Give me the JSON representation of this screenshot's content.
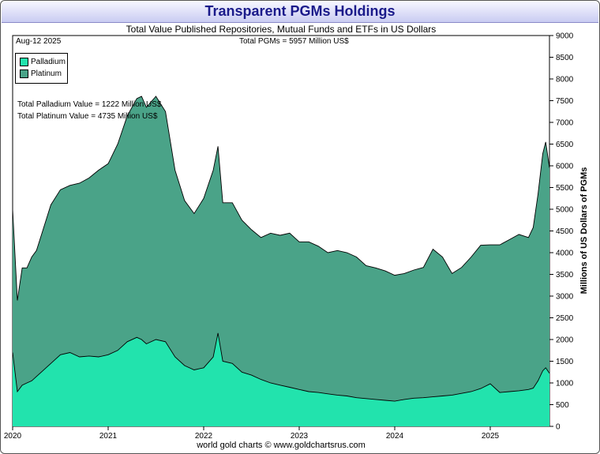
{
  "header": {
    "title": "Transparent PGMs Holdings",
    "subtitle": "Total Value Published Repositories, Mutual Funds and ETFs in US Dollars"
  },
  "annotations": {
    "date": "Aug-12  2025",
    "total": "Total PGMs = 5957 Million US$",
    "palladium_value": "Total Palladium Value = 1222 Million US$",
    "platinum_value": "Total Platinum Value = 4735 Million US$"
  },
  "footer": "world gold charts © www.goldchartsrus.com",
  "chart_data": {
    "type": "area",
    "stacked": true,
    "ylabel": "Millions of US Dollars of PGMs",
    "ylim": [
      0,
      9000
    ],
    "yticks": [
      "0",
      "500",
      "1000",
      "1500",
      "2000",
      "2500",
      "3000",
      "3500",
      "4000",
      "4500",
      "5000",
      "5500",
      "6000",
      "6500",
      "7000",
      "7500",
      "8000",
      "8500",
      "9000"
    ],
    "xlim": [
      2020.0,
      2025.62
    ],
    "xticks": [
      "2020",
      "2021",
      "2022",
      "2023",
      "2024",
      "2025"
    ],
    "legend_position": "top-left",
    "colors": {
      "palladium": "#22e3ad",
      "platinum": "#4aa388"
    },
    "x": [
      2020.0,
      2020.05,
      2020.1,
      2020.15,
      2020.2,
      2020.25,
      2020.3,
      2020.4,
      2020.5,
      2020.6,
      2020.7,
      2020.8,
      2020.9,
      2021.0,
      2021.1,
      2021.2,
      2021.3,
      2021.35,
      2021.4,
      2021.5,
      2021.6,
      2021.7,
      2021.8,
      2021.9,
      2022.0,
      2022.1,
      2022.15,
      2022.2,
      2022.3,
      2022.4,
      2022.5,
      2022.6,
      2022.7,
      2022.8,
      2022.9,
      2023.0,
      2023.1,
      2023.2,
      2023.3,
      2023.4,
      2023.5,
      2023.6,
      2023.7,
      2023.8,
      2023.9,
      2024.0,
      2024.1,
      2024.2,
      2024.3,
      2024.4,
      2024.5,
      2024.6,
      2024.7,
      2024.8,
      2024.9,
      2025.0,
      2025.1,
      2025.2,
      2025.3,
      2025.4,
      2025.45,
      2025.5,
      2025.55,
      2025.58,
      2025.62
    ],
    "series": [
      {
        "name": "Palladium",
        "values": [
          1700,
          800,
          950,
          1000,
          1050,
          1150,
          1250,
          1450,
          1650,
          1700,
          1600,
          1620,
          1600,
          1650,
          1750,
          1950,
          2050,
          2000,
          1900,
          2000,
          1950,
          1600,
          1400,
          1300,
          1350,
          1600,
          2150,
          1500,
          1450,
          1250,
          1180,
          1080,
          1000,
          950,
          900,
          850,
          800,
          780,
          750,
          720,
          700,
          660,
          640,
          620,
          600,
          580,
          620,
          650,
          660,
          680,
          700,
          720,
          760,
          800,
          870,
          980,
          780,
          800,
          820,
          850,
          880,
          1050,
          1280,
          1350,
          1222
        ]
      },
      {
        "name": "Platinum",
        "values": [
          3300,
          2100,
          2700,
          2650,
          2850,
          2900,
          3150,
          3650,
          3800,
          3850,
          4000,
          4100,
          4300,
          4400,
          4750,
          5200,
          5500,
          5600,
          5450,
          5600,
          5300,
          4300,
          3800,
          3600,
          3900,
          4300,
          4300,
          3650,
          3700,
          3500,
          3350,
          3270,
          3450,
          3450,
          3550,
          3400,
          3450,
          3370,
          3250,
          3330,
          3300,
          3240,
          3060,
          3030,
          2980,
          2900,
          2900,
          2950,
          3000,
          3400,
          3200,
          2800,
          2900,
          3100,
          3300,
          3200,
          3400,
          3500,
          3600,
          3500,
          3700,
          4300,
          5000,
          5200,
          4735
        ]
      }
    ]
  }
}
